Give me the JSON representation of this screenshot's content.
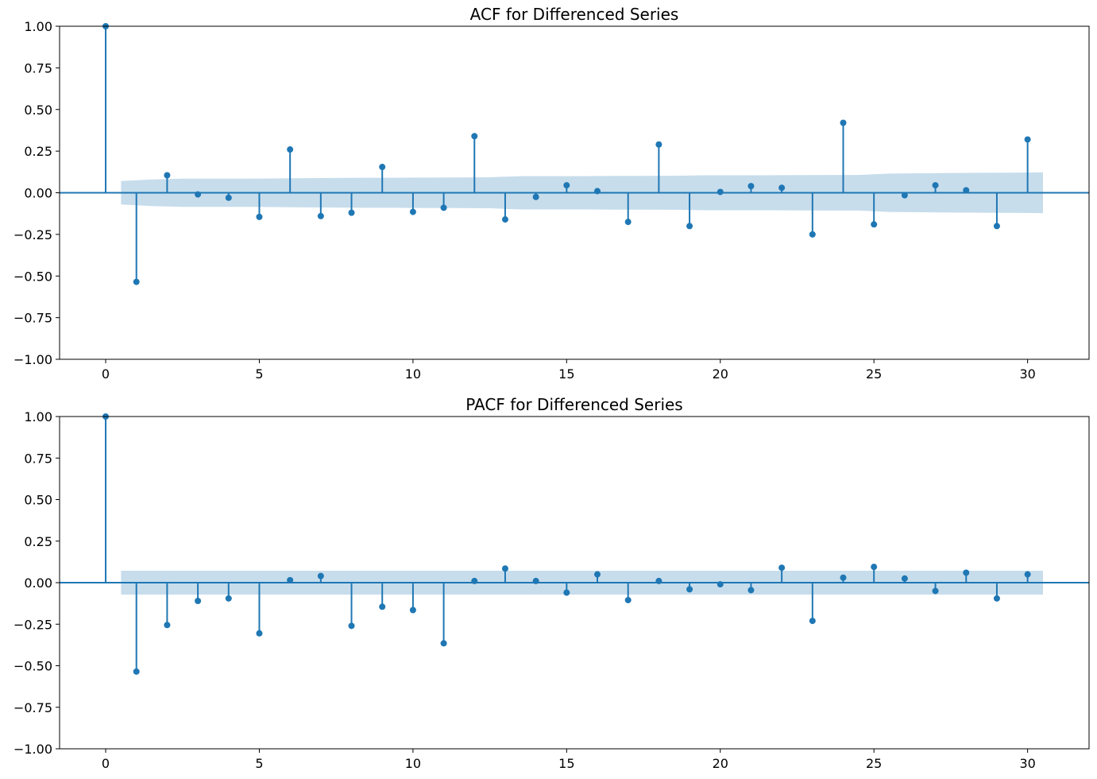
{
  "colors": {
    "stem": "#1f77b4",
    "marker": "#1f77b4",
    "confidence_band": "#1f77b4",
    "confidence_band_opacity": 0.25
  },
  "chart_data": [
    {
      "type": "stem",
      "title": "ACF for Differenced Series",
      "xlabel": "",
      "ylabel": "",
      "xlim": [
        -1.5,
        32.0
      ],
      "ylim": [
        -1.0,
        1.0
      ],
      "xticks": [
        0,
        5,
        10,
        15,
        20,
        25,
        30
      ],
      "xtick_labels": [
        "0",
        "5",
        "10",
        "15",
        "20",
        "25",
        "30"
      ],
      "yticks": [
        1.0,
        0.75,
        0.5,
        0.25,
        0.0,
        -0.25,
        -0.5,
        -0.75,
        -1.0
      ],
      "ytick_labels": [
        "1.00",
        "0.75",
        "0.50",
        "0.25",
        "0.00",
        "−0.25",
        "−0.50",
        "−0.75",
        "−1.00"
      ],
      "grid": false,
      "lags": [
        0,
        1,
        2,
        3,
        4,
        5,
        6,
        7,
        8,
        9,
        10,
        11,
        12,
        13,
        14,
        15,
        16,
        17,
        18,
        19,
        20,
        21,
        22,
        23,
        24,
        25,
        26,
        27,
        28,
        29,
        30
      ],
      "values": [
        1.0,
        -0.535,
        0.105,
        -0.01,
        -0.03,
        -0.145,
        0.26,
        -0.14,
        -0.12,
        0.155,
        -0.115,
        -0.09,
        0.34,
        -0.16,
        -0.025,
        0.045,
        0.01,
        -0.175,
        0.29,
        -0.2,
        0.005,
        0.04,
        0.03,
        -0.25,
        0.42,
        -0.19,
        -0.015,
        0.045,
        0.015,
        -0.2,
        0.32
      ],
      "confidence_band": {
        "x": [
          0.5,
          1.5,
          2.5,
          3.5,
          4.5,
          5.5,
          6.5,
          7.5,
          8.5,
          9.5,
          10.5,
          11.5,
          12.5,
          13.5,
          14.5,
          15.5,
          16.5,
          17.5,
          18.5,
          19.5,
          20.5,
          21.5,
          22.5,
          23.5,
          24.5,
          25.5,
          26.5,
          27.5,
          28.5,
          29.5,
          30.5
        ],
        "upper": [
          0.07,
          0.08,
          0.085,
          0.085,
          0.085,
          0.086,
          0.088,
          0.089,
          0.09,
          0.09,
          0.091,
          0.092,
          0.093,
          0.1,
          0.1,
          0.1,
          0.101,
          0.101,
          0.102,
          0.105,
          0.105,
          0.105,
          0.106,
          0.107,
          0.107,
          0.115,
          0.117,
          0.119,
          0.12,
          0.121,
          0.122
        ]
      }
    },
    {
      "type": "stem",
      "title": "PACF for Differenced Series",
      "xlabel": "",
      "ylabel": "",
      "xlim": [
        -1.5,
        32.0
      ],
      "ylim": [
        -1.0,
        1.0
      ],
      "xticks": [
        0,
        5,
        10,
        15,
        20,
        25,
        30
      ],
      "xtick_labels": [
        "0",
        "5",
        "10",
        "15",
        "20",
        "25",
        "30"
      ],
      "yticks": [
        1.0,
        0.75,
        0.5,
        0.25,
        0.0,
        -0.25,
        -0.5,
        -0.75,
        -1.0
      ],
      "ytick_labels": [
        "1.00",
        "0.75",
        "0.50",
        "0.25",
        "0.00",
        "−0.25",
        "−0.50",
        "−0.75",
        "−1.00"
      ],
      "grid": false,
      "lags": [
        0,
        1,
        2,
        3,
        4,
        5,
        6,
        7,
        8,
        9,
        10,
        11,
        12,
        13,
        14,
        15,
        16,
        17,
        18,
        19,
        20,
        21,
        22,
        23,
        24,
        25,
        26,
        27,
        28,
        29,
        30
      ],
      "values": [
        1.0,
        -0.535,
        -0.255,
        -0.11,
        -0.095,
        -0.305,
        0.015,
        0.04,
        -0.26,
        -0.145,
        -0.165,
        -0.365,
        0.01,
        0.085,
        0.01,
        -0.06,
        0.05,
        -0.105,
        0.01,
        -0.04,
        -0.01,
        -0.045,
        0.09,
        -0.23,
        0.03,
        0.095,
        0.025,
        -0.05,
        0.06,
        -0.095,
        0.05
      ],
      "confidence_band": {
        "x": [
          0.5,
          30.5
        ],
        "upper": [
          0.072,
          0.072
        ]
      }
    }
  ]
}
